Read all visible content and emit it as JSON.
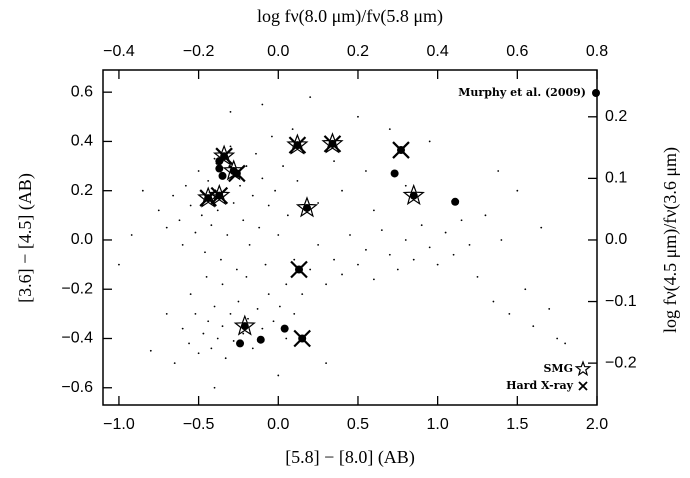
{
  "chart_data": {
    "type": "scatter",
    "xlabel": "[5.8] − [8.0] (AB)",
    "ylabel": "[3.6] − [4.5] (AB)",
    "x2label": "log fν(8.0 μm)/fν(5.8 μm)",
    "y2label": "log fν(4.5 μm)/fν(3.6 μm)",
    "xlim": [
      -1.1,
      2.0
    ],
    "ylim": [
      -0.67,
      0.69
    ],
    "x2lim": [
      -0.44,
      0.8
    ],
    "y2lim": [
      -0.268,
      0.276
    ],
    "xticks": [
      {
        "value": -1.0,
        "label": "−1.0"
      },
      {
        "value": -0.5,
        "label": "−0.5"
      },
      {
        "value": 0.0,
        "label": "0.0"
      },
      {
        "value": 0.5,
        "label": "0.5"
      },
      {
        "value": 1.0,
        "label": "1.0"
      },
      {
        "value": 1.5,
        "label": "1.5"
      },
      {
        "value": 2.0,
        "label": "2.0"
      }
    ],
    "yticks": [
      {
        "value": -0.6,
        "label": "−0.6"
      },
      {
        "value": -0.4,
        "label": "−0.4"
      },
      {
        "value": -0.2,
        "label": "−0.2"
      },
      {
        "value": 0.0,
        "label": "0.0"
      },
      {
        "value": 0.2,
        "label": "0.2"
      },
      {
        "value": 0.4,
        "label": "0.4"
      },
      {
        "value": 0.6,
        "label": "0.6"
      }
    ],
    "x2ticks": [
      {
        "value": -0.4,
        "label": "−0.4"
      },
      {
        "value": -0.2,
        "label": "−0.2"
      },
      {
        "value": 0.0,
        "label": "0.0"
      },
      {
        "value": 0.2,
        "label": "0.2"
      },
      {
        "value": 0.4,
        "label": "0.4"
      },
      {
        "value": 0.6,
        "label": "0.6"
      },
      {
        "value": 0.8,
        "label": "0.8"
      }
    ],
    "y2ticks": [
      {
        "value": -0.2,
        "label": "−0.2"
      },
      {
        "value": -0.1,
        "label": "−0.1"
      },
      {
        "value": 0.0,
        "label": "0.0"
      },
      {
        "value": 0.1,
        "label": "0.1"
      },
      {
        "value": 0.2,
        "label": "0.2"
      }
    ],
    "series": [
      {
        "marker": "dot",
        "color": "#000000",
        "x": [
          -0.75,
          -0.7,
          -0.66,
          -0.62,
          -0.6,
          -0.58,
          -0.55,
          -0.52,
          -0.5,
          -0.48,
          -0.46,
          -0.44,
          -0.42,
          -0.4,
          -0.38,
          -0.36,
          -0.34,
          -0.32,
          -0.3,
          -0.28,
          -0.26,
          -0.24,
          -0.22,
          -0.2,
          -0.18,
          -0.16,
          -0.14,
          -0.12,
          -0.1,
          -0.08,
          -0.06,
          -0.04,
          -0.02,
          0.0,
          0.03,
          0.06,
          0.09,
          0.12,
          -0.85,
          -0.92,
          -0.6,
          -0.56,
          -0.52,
          -0.5,
          -0.47,
          -0.44,
          -0.42,
          -0.4,
          -0.38,
          -0.35,
          -0.33,
          -0.3,
          -0.28,
          -0.25,
          -0.22,
          -0.19,
          -0.16,
          -0.13,
          -0.1,
          -0.06,
          -0.03,
          0.01,
          0.05,
          -0.65,
          -0.55,
          -0.45,
          -0.35,
          -0.2,
          0.1,
          -0.7,
          0.05,
          0.1,
          0.15,
          0.2,
          0.25,
          0.3,
          0.35,
          0.4,
          0.45,
          0.5,
          0.55,
          0.6,
          0.65,
          0.7,
          0.75,
          0.8,
          0.85,
          0.9,
          0.95,
          1.0,
          1.05,
          1.1,
          1.15,
          1.2,
          0.4,
          0.55,
          0.25,
          0.6,
          0.8,
          0.35,
          1.25,
          1.3,
          1.35,
          1.4,
          1.45,
          1.5,
          1.55,
          1.6,
          1.65,
          1.7,
          1.75,
          1.8,
          1.38,
          0.95,
          0.7,
          -1.0,
          -0.8,
          -0.3,
          -0.1,
          0.2,
          0.5,
          0.3,
          0.0,
          -0.4
        ],
        "y": [
          0.12,
          0.05,
          0.18,
          0.08,
          -0.02,
          0.22,
          0.14,
          0.03,
          0.28,
          0.1,
          -0.05,
          0.24,
          0.06,
          0.33,
          0.12,
          -0.08,
          0.2,
          0.02,
          0.38,
          0.15,
          -0.12,
          0.22,
          0.08,
          0.3,
          -0.02,
          0.18,
          0.35,
          0.05,
          0.25,
          -0.1,
          0.14,
          0.42,
          0.2,
          0.02,
          0.3,
          0.1,
          0.45,
          0.24,
          0.2,
          0.02,
          -0.36,
          -0.42,
          -0.3,
          -0.46,
          -0.38,
          -0.33,
          -0.44,
          -0.27,
          -0.4,
          -0.35,
          -0.48,
          -0.3,
          -0.41,
          -0.25,
          -0.38,
          -0.32,
          -0.44,
          -0.28,
          -0.36,
          -0.22,
          -0.33,
          -0.27,
          -0.4,
          -0.5,
          -0.22,
          -0.15,
          -0.18,
          -0.15,
          -0.3,
          -0.3,
          -0.18,
          -0.08,
          -0.22,
          -0.12,
          -0.02,
          -0.18,
          -0.08,
          -0.14,
          0.02,
          -0.1,
          -0.04,
          -0.16,
          0.04,
          -0.06,
          -0.12,
          0.0,
          -0.08,
          0.06,
          -0.03,
          -0.1,
          0.03,
          -0.06,
          0.08,
          -0.02,
          0.2,
          0.28,
          0.15,
          0.12,
          0.22,
          0.32,
          -0.15,
          0.1,
          -0.25,
          0.0,
          -0.3,
          0.2,
          -0.2,
          -0.35,
          0.05,
          -0.28,
          -0.4,
          -0.42,
          0.28,
          0.4,
          0.45,
          -0.1,
          -0.45,
          0.52,
          0.55,
          0.58,
          0.5,
          -0.5,
          -0.55,
          -0.6
        ]
      },
      {
        "name": "Murphy et al. (2009)",
        "marker": "circle",
        "color": "#000000",
        "x": [
          0.12,
          0.34,
          0.77,
          0.73,
          0.85,
          1.11,
          0.18,
          0.13,
          0.15,
          0.04,
          -0.11,
          -0.24,
          -0.21,
          -0.34,
          -0.37,
          -0.37,
          -0.35,
          -0.28,
          -0.26,
          -0.44,
          -0.37
        ],
        "y": [
          0.385,
          0.39,
          0.365,
          0.27,
          0.18,
          0.155,
          0.13,
          -0.12,
          -0.4,
          -0.36,
          -0.405,
          -0.42,
          -0.35,
          0.34,
          0.32,
          0.29,
          0.26,
          0.28,
          0.27,
          0.17,
          0.18
        ]
      },
      {
        "name": "SMG",
        "marker": "star",
        "color": "#000000",
        "x": [
          0.12,
          0.34,
          0.85,
          0.18,
          -0.21,
          -0.34,
          -0.28,
          -0.44,
          -0.37
        ],
        "y": [
          0.385,
          0.39,
          0.18,
          0.13,
          -0.35,
          0.34,
          0.28,
          0.17,
          0.18
        ]
      },
      {
        "name": "Hard X-ray",
        "marker": "cross",
        "color": "#000000",
        "x": [
          0.12,
          0.34,
          0.77,
          0.13,
          0.15,
          -0.34,
          -0.26,
          -0.44,
          -0.37
        ],
        "y": [
          0.385,
          0.39,
          0.365,
          -0.12,
          -0.4,
          0.34,
          0.27,
          0.17,
          0.18
        ]
      }
    ]
  }
}
